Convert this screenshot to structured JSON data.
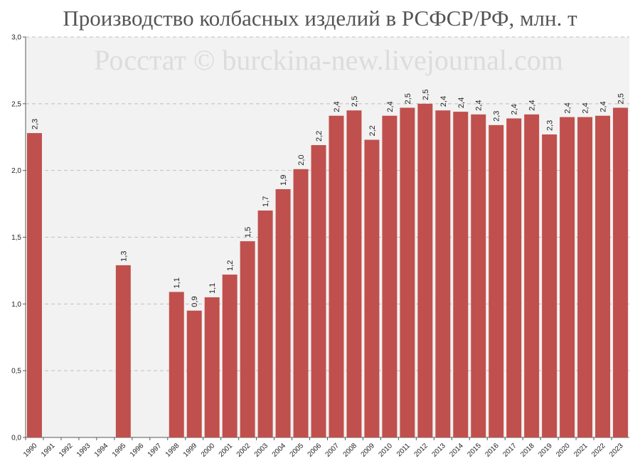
{
  "chart_data": {
    "type": "bar",
    "title": "Производство колбасных изделий в РСФСР/РФ, млн. т",
    "watermark": "Росстат © burckina-new.livejournal.com",
    "xlabel": "",
    "ylabel": "",
    "ylim": [
      0,
      3.0
    ],
    "yticks": [
      "0,0",
      "0,5",
      "1,0",
      "1,5",
      "2,0",
      "2,5",
      "3,0"
    ],
    "ytick_values": [
      0,
      0.5,
      1.0,
      1.5,
      2.0,
      2.5,
      3.0
    ],
    "grid": true,
    "bar_color": "#c0504d",
    "plot_bg": "#f2f2f2",
    "categories": [
      "1990",
      "1991",
      "1992",
      "1993",
      "1994",
      "1995",
      "1996",
      "1997",
      "1998",
      "1999",
      "2000",
      "2001",
      "2002",
      "2003",
      "2004",
      "2005",
      "2006",
      "2007",
      "2008",
      "2009",
      "2010",
      "2011",
      "2012",
      "2013",
      "2014",
      "2015",
      "2016",
      "2017",
      "2018",
      "2019",
      "2020",
      "2021",
      "2022",
      "2023"
    ],
    "values": [
      2.28,
      null,
      null,
      null,
      null,
      1.29,
      null,
      null,
      1.09,
      0.95,
      1.05,
      1.22,
      1.47,
      1.7,
      1.86,
      2.01,
      2.19,
      2.41,
      2.45,
      2.23,
      2.41,
      2.47,
      2.5,
      2.45,
      2.44,
      2.42,
      2.34,
      2.39,
      2.42,
      2.27,
      2.4,
      2.4,
      2.41,
      2.47
    ],
    "data_labels": [
      "2,3",
      "",
      "",
      "",
      "",
      "1,3",
      "",
      "",
      "1,1",
      "0,9",
      "1,1",
      "1,2",
      "1,5",
      "1,7",
      "1,9",
      "2,0",
      "2,2",
      "2,4",
      "2,5",
      "2,2",
      "2,4",
      "2,5",
      "2,5",
      "2,4",
      "2,4",
      "2,4",
      "2,3",
      "2,4",
      "2,4",
      "2,3",
      "2,4",
      "2,4",
      "2,4",
      "2,5"
    ]
  }
}
